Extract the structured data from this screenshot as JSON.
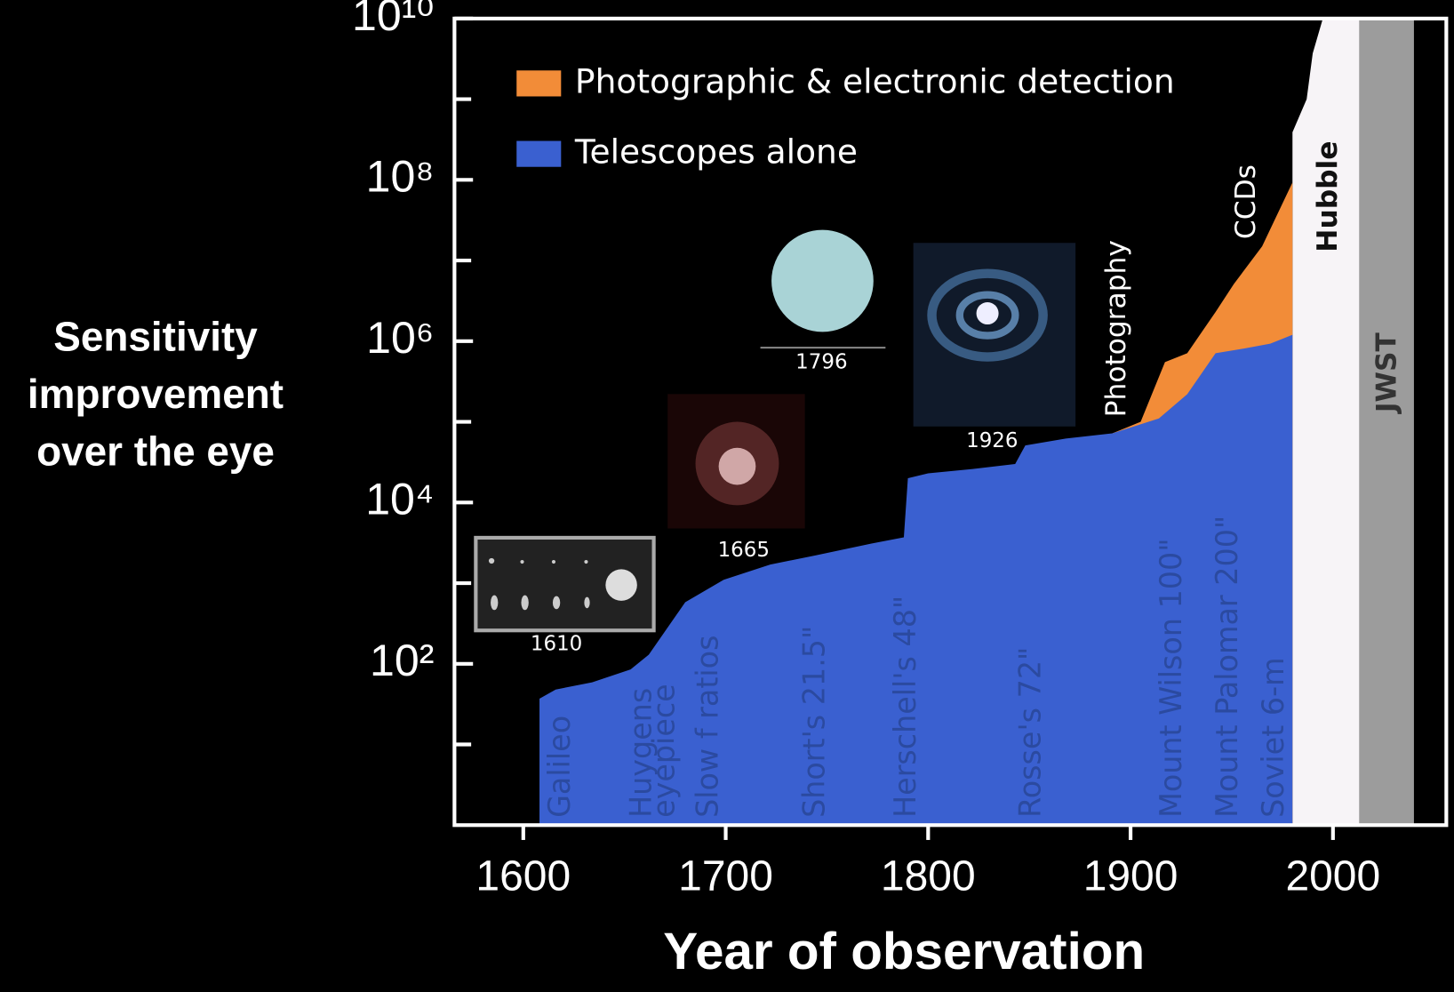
{
  "chart_data": {
    "type": "area",
    "ylabel": "Sensitivity improvement over the eye",
    "xlabel": "Year of observation",
    "log_y": true,
    "xlim": [
      1566,
      2056
    ],
    "xticks": [
      1600,
      1700,
      1800,
      1900,
      2000
    ],
    "ylim": [
      1,
      10000000000
    ],
    "yticks": [
      {
        "value": 100,
        "label": "10²"
      },
      {
        "value": 10000,
        "label": "10⁴"
      },
      {
        "value": 1000000,
        "label": "10⁶"
      },
      {
        "value": 100000000,
        "label": "10⁸"
      },
      {
        "value": 10000000000,
        "label": "10¹⁰"
      }
    ],
    "yminor": [
      10,
      1000,
      100000,
      10000000,
      1000000000
    ],
    "legend": "upper left",
    "series": [
      {
        "name": "Photographic & electronic detection",
        "color": "#f28c38",
        "x": [
          1891,
          1905,
          1917,
          1928,
          1942,
          1951,
          1965,
          1980
        ],
        "values": [
          72000,
          100000,
          550000,
          710000,
          2300000,
          5100000,
          15000000,
          93000000
        ]
      },
      {
        "name": "Telescopes alone",
        "color": "#3a60d0",
        "x": [
          1608,
          1616,
          1634,
          1653,
          1662,
          1680,
          1699,
          1722,
          1744,
          1772,
          1788,
          1790,
          1800,
          1822,
          1843,
          1848,
          1868,
          1891,
          1914,
          1928,
          1942,
          1956,
          1969,
          1980
        ],
        "values": [
          37,
          48,
          59,
          85,
          130,
          580,
          1100,
          1700,
          2200,
          3100,
          3700,
          20000,
          23000,
          26000,
          30000,
          51000,
          62000,
          72000,
          110000,
          220000,
          710000,
          810000,
          930000,
          1200000
        ]
      }
    ],
    "bands": [
      {
        "label": "Hubble",
        "color": "#f7f4f7",
        "x": [
          1980,
          1987,
          1990,
          1995,
          2013
        ],
        "values": [
          390000000,
          1000000000,
          3700000000,
          10000000000,
          10000000000
        ]
      },
      {
        "label": "JWST",
        "color": "#9c9c9c",
        "from": 2013,
        "to": 2040
      }
    ],
    "milestones": [
      "Galileo",
      "Huygens",
      "eyepiece",
      "Slow f ratios",
      "Short's 21.5\"",
      "Herschell's 48\"",
      "Rosse's 72\"",
      "Mount Wilson 100\"",
      "Mount Palomar 200\"",
      "Soviet 6-m"
    ],
    "events": [
      "Photography",
      "CCDs"
    ],
    "insets": [
      "1610",
      "1665",
      "1796",
      "1926"
    ]
  }
}
